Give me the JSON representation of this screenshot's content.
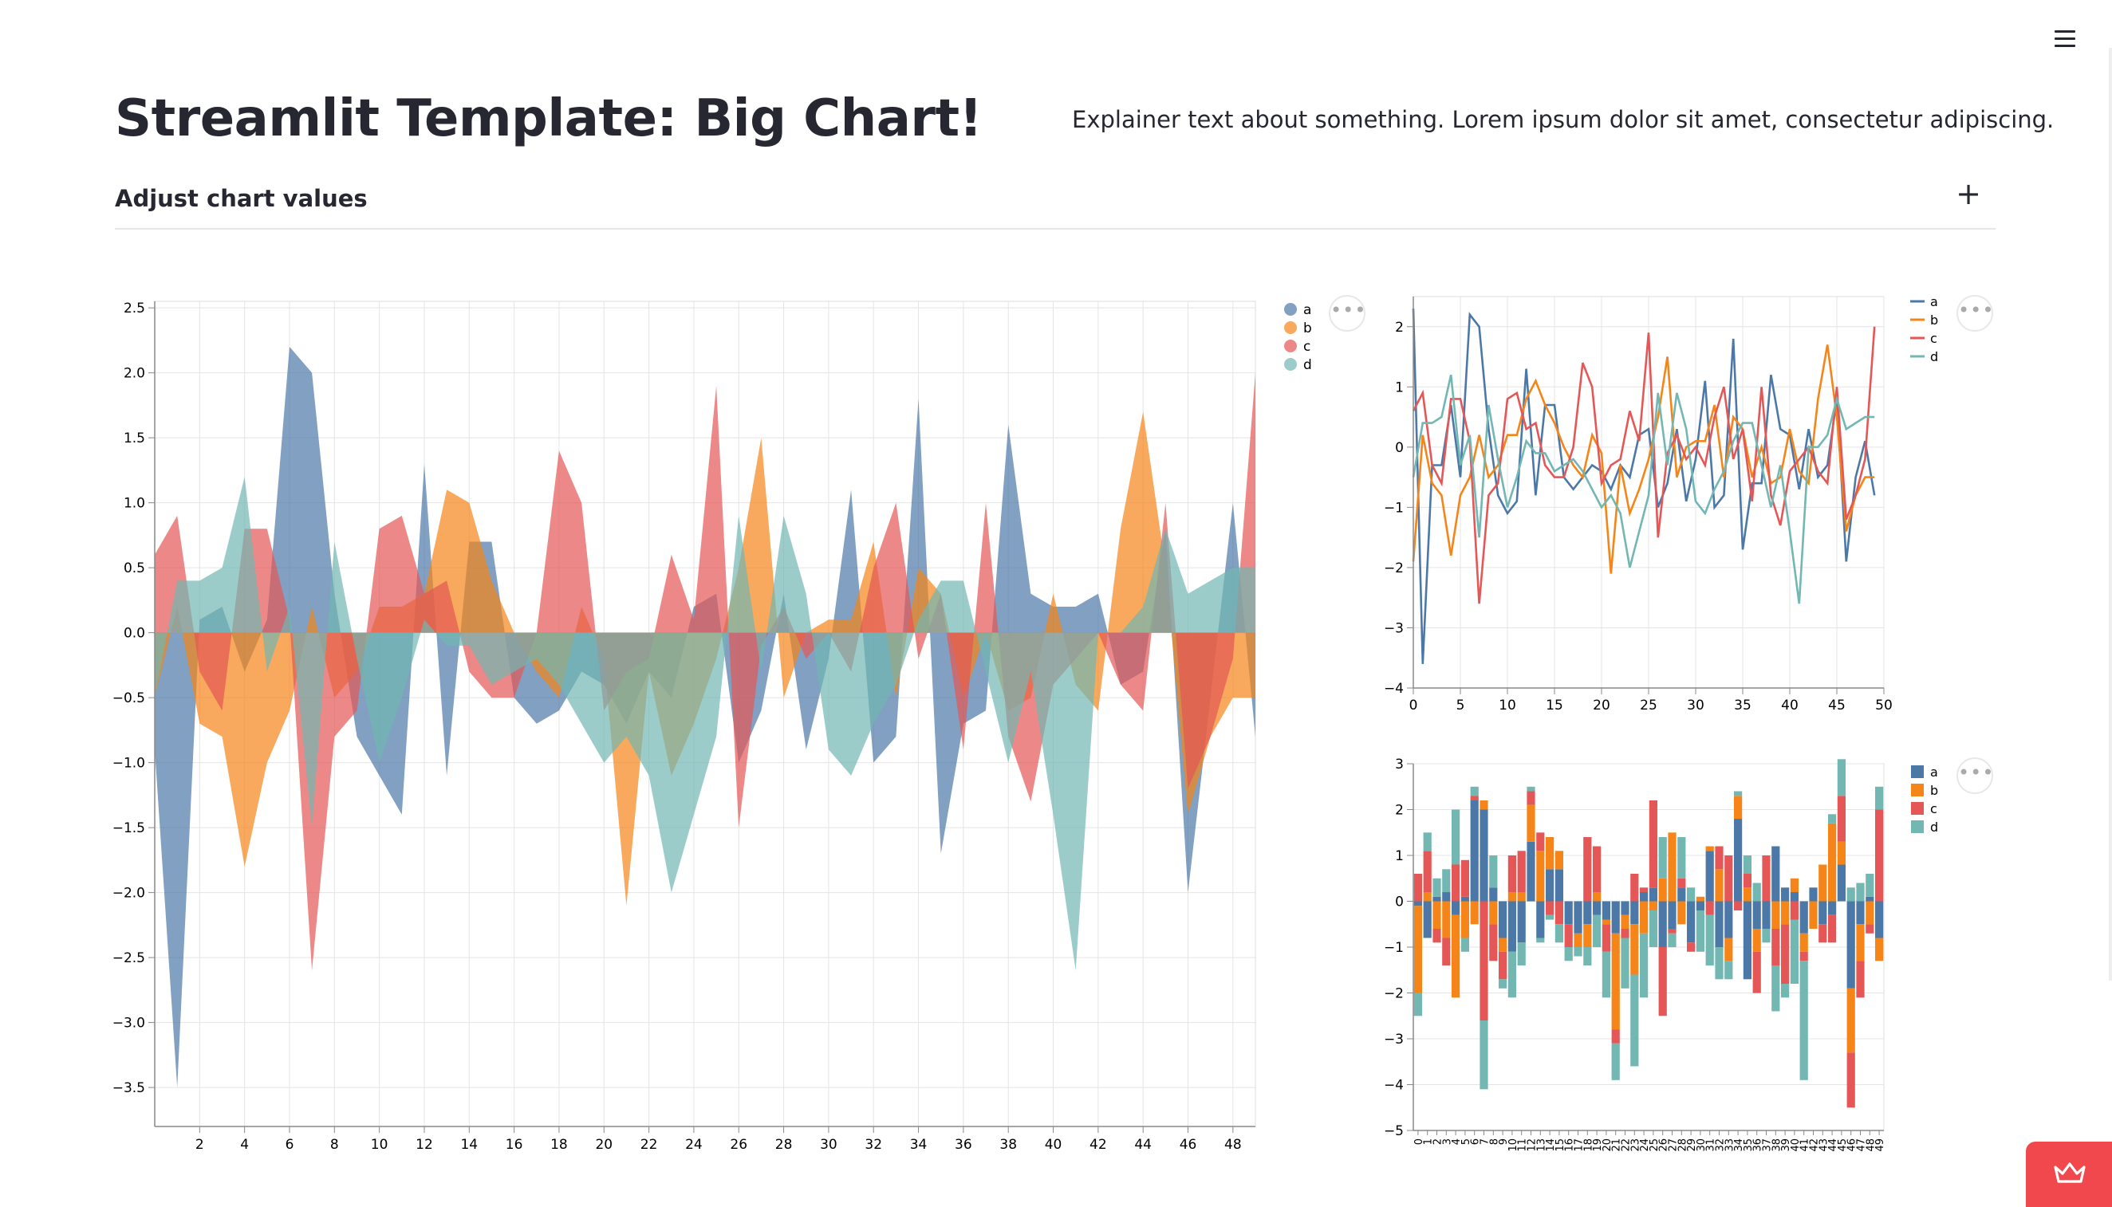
{
  "page": {
    "title": "Streamlit Template: Big Chart!",
    "explainer": "Explainer text about something. Lorem ipsum dolor sit amet, consectetur adipiscing.",
    "expander_label": "Adjust chart values",
    "expander_icon": "plus-icon",
    "menu_icon": "hamburger-menu-icon",
    "chart_menu_icon": "more-horizontal-icon",
    "badge_icon": "crown-icon",
    "badge_color": "#f0484d"
  },
  "chart_data": [
    {
      "type": "area",
      "legend_position": "top-right",
      "grid": true,
      "xlim": [
        0,
        49
      ],
      "ylim": [
        -3.8,
        2.55
      ],
      "x_ticks": [
        2,
        4,
        6,
        8,
        10,
        12,
        14,
        16,
        18,
        20,
        22,
        24,
        26,
        28,
        30,
        32,
        34,
        36,
        38,
        40,
        42,
        44,
        46,
        48
      ],
      "y_ticks": [
        2.5,
        2.0,
        1.5,
        1.0,
        0.5,
        0.0,
        -0.5,
        -1.0,
        -1.5,
        -2.0,
        -2.5,
        -3.0,
        -3.5
      ],
      "y_tick_labels": [
        "2.5",
        "2.0",
        "1.5",
        "1.0",
        "0.5",
        "0.0",
        "−0.5",
        "−1.0",
        "−1.5",
        "−2.0",
        "−2.5",
        "−3.0",
        "−3.5"
      ],
      "series": [
        {
          "name": "a",
          "color": "#4c78a8",
          "values": [
            -0.9,
            -3.5,
            0.1,
            0.2,
            -0.3,
            0.1,
            2.2,
            2.0,
            0.3,
            -0.8,
            -1.1,
            -1.4,
            1.3,
            -1.1,
            0.7,
            0.7,
            -0.5,
            -0.7,
            -0.6,
            -0.3,
            -0.4,
            -0.7,
            -0.3,
            -0.5,
            0.2,
            0.3,
            -1.0,
            -0.6,
            0.3,
            -0.9,
            -0.2,
            1.1,
            -1.0,
            -0.8,
            1.8,
            -1.7,
            -0.7,
            -0.6,
            1.6,
            0.3,
            0.2,
            0.2,
            0.3,
            -0.4,
            -0.3,
            0.8,
            -2.0,
            -0.5,
            1.0,
            -0.8
          ]
        },
        {
          "name": "b",
          "color": "#f58518",
          "values": [
            -0.5,
            0.2,
            -0.7,
            -0.8,
            -1.8,
            -1.0,
            -0.6,
            0.2,
            -0.5,
            -0.3,
            0.2,
            0.2,
            0.3,
            1.1,
            1.0,
            0.4,
            0.0,
            -0.3,
            -0.5,
            0.2,
            -0.2,
            -2.1,
            -0.3,
            -1.1,
            -0.7,
            -0.2,
            0.5,
            1.5,
            -0.5,
            0.0,
            0.1,
            0.1,
            0.7,
            -0.5,
            0.5,
            0.3,
            -0.5,
            0.0,
            -0.6,
            -0.5,
            0.3,
            -0.4,
            -0.6,
            0.8,
            1.7,
            0.5,
            -1.4,
            -0.8,
            -0.5,
            -0.5
          ]
        },
        {
          "name": "c",
          "color": "#e45756",
          "values": [
            0.6,
            0.9,
            -0.3,
            -0.6,
            0.8,
            0.8,
            0.1,
            -2.6,
            -0.8,
            -0.6,
            0.8,
            0.9,
            0.3,
            0.4,
            -0.3,
            -0.5,
            -0.5,
            0.0,
            1.4,
            1.0,
            -0.6,
            -0.3,
            -0.2,
            0.6,
            0.1,
            1.9,
            -1.5,
            -0.1,
            0.2,
            -0.2,
            0.0,
            -0.3,
            0.5,
            1.0,
            -0.2,
            0.3,
            -0.9,
            1.0,
            -0.8,
            -1.3,
            -0.4,
            -0.2,
            0.0,
            -0.4,
            -0.6,
            1.0,
            -1.2,
            -0.8,
            -0.2,
            2.0
          ]
        },
        {
          "name": "d",
          "color": "#72b7b2",
          "values": [
            -0.5,
            0.4,
            0.4,
            0.5,
            1.2,
            -0.3,
            0.2,
            -1.5,
            0.7,
            -0.2,
            -1.0,
            -0.5,
            0.1,
            -0.1,
            -0.1,
            -0.4,
            -0.3,
            -0.2,
            -0.4,
            -0.7,
            -1.0,
            -0.8,
            -1.1,
            -2.0,
            -1.4,
            -0.8,
            0.9,
            -0.3,
            0.9,
            0.3,
            -0.9,
            -1.1,
            -0.7,
            -0.4,
            0.1,
            0.4,
            0.4,
            -0.3,
            -1.0,
            -0.3,
            -1.4,
            -2.6,
            0.0,
            0.0,
            0.2,
            0.8,
            0.3,
            0.4,
            0.5,
            0.5
          ]
        }
      ]
    },
    {
      "type": "line",
      "legend_position": "top-right",
      "grid": true,
      "xlim": [
        0,
        50
      ],
      "ylim": [
        -4,
        2.5
      ],
      "x_ticks": [
        0,
        5,
        10,
        15,
        20,
        25,
        30,
        35,
        40,
        45,
        50
      ],
      "y_ticks": [
        2,
        1,
        0,
        -1,
        -2,
        -3,
        -4
      ],
      "y_tick_labels": [
        "2",
        "1",
        "0",
        "−1",
        "−2",
        "−3",
        "−4"
      ],
      "series": [
        {
          "name": "a",
          "color": "#4c78a8",
          "values": [
            2.3,
            -3.6,
            -0.3,
            -0.3,
            0.7,
            -0.5,
            2.2,
            2.0,
            0.3,
            -0.8,
            -1.1,
            -0.9,
            1.3,
            -0.8,
            0.7,
            0.7,
            -0.5,
            -0.7,
            -0.5,
            -0.3,
            -0.4,
            -0.7,
            -0.3,
            -0.5,
            0.2,
            0.3,
            -1.0,
            -0.6,
            0.3,
            -0.9,
            -0.2,
            1.1,
            -1.0,
            -0.8,
            1.8,
            -1.7,
            -0.6,
            -0.6,
            1.2,
            0.3,
            0.2,
            -0.7,
            0.3,
            -0.5,
            -0.3,
            0.8,
            -1.9,
            -0.5,
            0.1,
            -0.8
          ]
        },
        {
          "name": "b",
          "color": "#f58518",
          "values": [
            -1.9,
            0.2,
            -0.6,
            -0.8,
            -1.8,
            -0.8,
            -0.5,
            0.2,
            -0.5,
            -0.3,
            0.2,
            0.2,
            0.8,
            1.1,
            0.7,
            0.4,
            0.0,
            -0.3,
            -0.5,
            0.2,
            -0.1,
            -2.1,
            -0.3,
            -1.1,
            -0.7,
            -0.2,
            0.5,
            1.5,
            -0.5,
            0.0,
            0.1,
            0.1,
            0.7,
            -0.5,
            0.5,
            0.3,
            -0.5,
            0.0,
            -0.6,
            -0.5,
            0.3,
            -0.4,
            -0.6,
            0.8,
            1.7,
            0.5,
            -1.4,
            -0.8,
            -0.5,
            -0.5
          ]
        },
        {
          "name": "c",
          "color": "#e45756",
          "values": [
            0.6,
            0.9,
            -0.3,
            -0.6,
            0.8,
            0.8,
            0.1,
            -2.6,
            -0.8,
            -0.6,
            0.8,
            0.9,
            0.3,
            0.4,
            -0.3,
            -0.5,
            -0.5,
            0.0,
            1.4,
            1.0,
            -0.6,
            -0.3,
            -0.2,
            0.6,
            0.1,
            1.9,
            -1.5,
            -0.1,
            0.2,
            -0.2,
            0.0,
            -0.3,
            0.5,
            1.0,
            -0.2,
            0.3,
            -0.9,
            1.0,
            -0.8,
            -1.3,
            -0.4,
            -0.2,
            0.0,
            -0.4,
            -0.6,
            1.0,
            -1.2,
            -0.8,
            -0.2,
            2.0
          ]
        },
        {
          "name": "d",
          "color": "#72b7b2",
          "values": [
            -0.5,
            0.4,
            0.4,
            0.5,
            1.2,
            -0.3,
            0.2,
            -1.5,
            0.7,
            -0.2,
            -1.0,
            -0.5,
            0.1,
            -0.1,
            -0.1,
            -0.4,
            -0.3,
            -0.2,
            -0.4,
            -0.7,
            -1.0,
            -0.8,
            -1.1,
            -2.0,
            -1.4,
            -0.8,
            0.9,
            -0.3,
            0.9,
            0.3,
            -0.9,
            -1.1,
            -0.7,
            -0.4,
            0.1,
            0.4,
            0.4,
            -0.3,
            -1.0,
            -0.3,
            -1.4,
            -2.6,
            0.0,
            0.0,
            0.2,
            0.8,
            0.3,
            0.4,
            0.5,
            0.5
          ]
        }
      ]
    },
    {
      "type": "bar",
      "stacked": true,
      "legend_position": "top-right",
      "grid": true,
      "categories": [
        "0",
        "1",
        "2",
        "3",
        "4",
        "5",
        "6",
        "7",
        "8",
        "9",
        "10",
        "11",
        "12",
        "13",
        "14",
        "15",
        "16",
        "17",
        "18",
        "19",
        "20",
        "21",
        "22",
        "23",
        "24",
        "25",
        "26",
        "27",
        "28",
        "29",
        "30",
        "31",
        "32",
        "33",
        "34",
        "35",
        "36",
        "37",
        "38",
        "39",
        "40",
        "41",
        "42",
        "43",
        "44",
        "45",
        "46",
        "47",
        "48",
        "49"
      ],
      "ylim": [
        -5,
        3
      ],
      "y_ticks": [
        3,
        2,
        1,
        0,
        -1,
        -2,
        -3,
        -4,
        -5
      ],
      "y_tick_labels": [
        "3",
        "2",
        "1",
        "0",
        "−1",
        "−2",
        "−3",
        "−4",
        "−5"
      ],
      "series": [
        {
          "name": "a",
          "color": "#4c78a8",
          "values": [
            -0.1,
            -0.8,
            0.1,
            0.2,
            -0.3,
            0.1,
            2.2,
            2.0,
            0.3,
            -0.8,
            -1.1,
            -0.9,
            1.3,
            -0.8,
            0.7,
            0.7,
            -0.5,
            -0.7,
            -0.5,
            -0.3,
            -0.4,
            -0.7,
            -0.3,
            -0.5,
            0.2,
            0.3,
            -1.0,
            -0.6,
            0.3,
            -0.9,
            -0.2,
            1.1,
            -1.0,
            -0.8,
            1.8,
            -1.7,
            -0.6,
            -0.6,
            1.2,
            0.3,
            0.2,
            -0.7,
            0.3,
            -0.5,
            -0.3,
            0.8,
            -1.9,
            -0.5,
            0.1,
            -0.8
          ]
        },
        {
          "name": "b",
          "color": "#f58518",
          "values": [
            -1.9,
            0.2,
            -0.6,
            -0.8,
            -1.8,
            -0.8,
            -0.5,
            0.2,
            -0.5,
            -0.3,
            0.2,
            0.2,
            0.8,
            1.1,
            0.7,
            0.4,
            0.0,
            -0.3,
            -0.5,
            0.2,
            -0.1,
            -2.1,
            -0.3,
            -1.1,
            -0.7,
            -0.2,
            0.5,
            1.5,
            -0.5,
            0.0,
            0.1,
            0.1,
            0.7,
            -0.5,
            0.5,
            0.3,
            -0.5,
            0.0,
            -0.6,
            -0.5,
            0.3,
            -0.4,
            -0.6,
            0.8,
            1.7,
            0.5,
            -1.4,
            -0.8,
            -0.5,
            -0.5
          ]
        },
        {
          "name": "c",
          "color": "#e45756",
          "values": [
            0.6,
            0.9,
            -0.3,
            -0.6,
            0.8,
            0.8,
            0.1,
            -2.6,
            -0.8,
            -0.6,
            0.8,
            0.9,
            0.3,
            0.4,
            -0.3,
            -0.5,
            -0.5,
            0.0,
            1.4,
            1.0,
            -0.6,
            -0.3,
            -0.2,
            0.6,
            0.1,
            1.9,
            -1.5,
            -0.1,
            0.2,
            -0.2,
            0.0,
            -0.3,
            0.5,
            1.0,
            -0.2,
            0.3,
            -0.9,
            1.0,
            -0.8,
            -1.3,
            -0.4,
            -0.2,
            0.0,
            -0.4,
            -0.6,
            1.0,
            -1.2,
            -0.8,
            -0.2,
            2.0
          ]
        },
        {
          "name": "d",
          "color": "#72b7b2",
          "values": [
            -0.5,
            0.4,
            0.4,
            0.5,
            1.2,
            -0.3,
            0.2,
            -1.5,
            0.7,
            -0.2,
            -1.0,
            -0.5,
            0.1,
            -0.1,
            -0.1,
            -0.4,
            -0.3,
            -0.2,
            -0.4,
            -0.7,
            -1.0,
            -0.8,
            -1.1,
            -2.0,
            -1.4,
            -0.8,
            0.9,
            -0.3,
            0.9,
            0.3,
            -0.9,
            -1.1,
            -0.7,
            -0.4,
            0.1,
            0.4,
            0.4,
            -0.3,
            -1.0,
            -0.3,
            -1.4,
            -2.6,
            0.0,
            0.0,
            0.2,
            0.8,
            0.3,
            0.4,
            0.5,
            0.5
          ]
        }
      ]
    }
  ]
}
